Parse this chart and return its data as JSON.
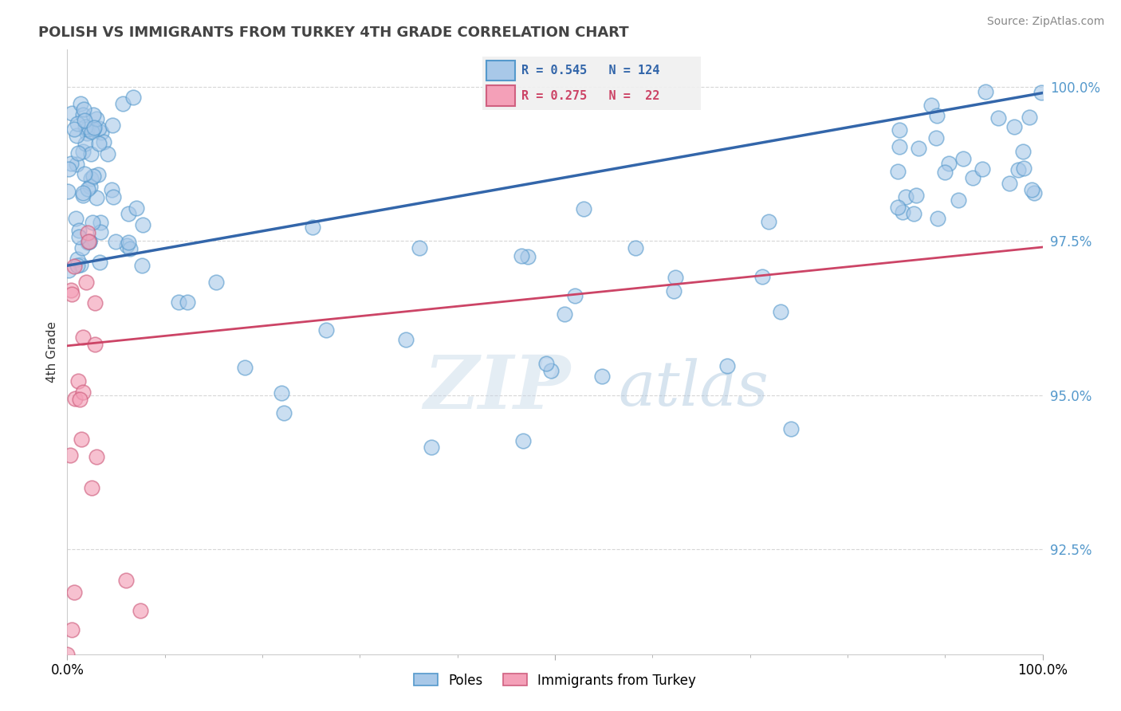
{
  "title": "POLISH VS IMMIGRANTS FROM TURKEY 4TH GRADE CORRELATION CHART",
  "source_text": "Source: ZipAtlas.com",
  "ylabel": "4th Grade",
  "xlim": [
    0,
    1.0
  ],
  "ylim": [
    0.908,
    1.006
  ],
  "ytick_labels": [
    "92.5%",
    "95.0%",
    "97.5%",
    "100.0%"
  ],
  "ytick_values": [
    0.925,
    0.95,
    0.975,
    1.0
  ],
  "legend_blue_label": "Poles",
  "legend_pink_label": "Immigrants from Turkey",
  "R_blue": 0.545,
  "N_blue": 124,
  "R_pink": 0.275,
  "N_pink": 22,
  "blue_color": "#a8c8e8",
  "pink_color": "#f4a0b8",
  "blue_edge_color": "#5599cc",
  "pink_edge_color": "#d06080",
  "blue_line_color": "#3366aa",
  "pink_line_color": "#cc4466",
  "watermark_zip_color": "#c8d8e8",
  "watermark_atlas_color": "#a8c8e0",
  "background_color": "#ffffff",
  "grid_color": "#cccccc",
  "tick_color": "#5599cc",
  "title_color": "#444444"
}
